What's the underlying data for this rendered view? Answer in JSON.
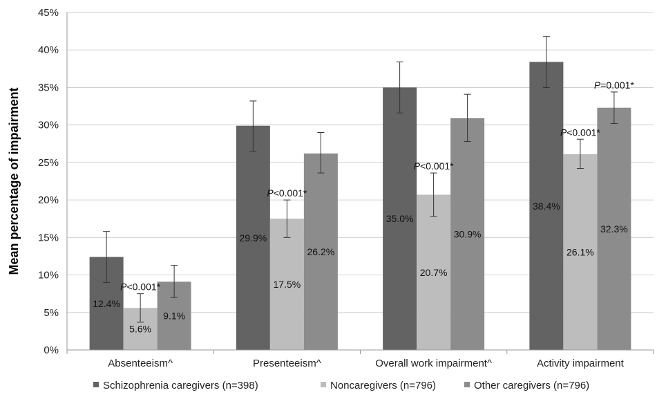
{
  "chart_data": {
    "type": "bar",
    "ylabel": "Mean percentage of impairment",
    "xlabel": "",
    "ylim": [
      0,
      45
    ],
    "y_ticks": [
      "0%",
      "5%",
      "10%",
      "15%",
      "20%",
      "25%",
      "30%",
      "35%",
      "40%",
      "45%"
    ],
    "y_tick_values": [
      0,
      5,
      10,
      15,
      20,
      25,
      30,
      35,
      40,
      45
    ],
    "grid": true,
    "legend_position": "bottom",
    "categories": [
      "Absenteeism^",
      "Presenteeism^",
      "Overall work impairment^",
      "Activity impairment"
    ],
    "series": [
      {
        "name": "Schizophrenia caregivers (n=398)",
        "color": "#636363",
        "values": [
          12.4,
          29.9,
          35.0,
          38.4
        ],
        "labels": [
          "12.4%",
          "29.9%",
          "35.0%",
          "38.4%"
        ],
        "error_low": [
          9.0,
          26.5,
          31.6,
          35.0
        ],
        "error_high": [
          15.8,
          33.2,
          38.4,
          41.8
        ]
      },
      {
        "name": "Noncaregivers (n=796)",
        "color": "#bdbdbd",
        "values": [
          5.6,
          17.5,
          20.7,
          26.1
        ],
        "labels": [
          "5.6%",
          "17.5%",
          "20.7%",
          "26.1%"
        ],
        "error_low": [
          3.7,
          15.0,
          17.8,
          24.2
        ],
        "error_high": [
          7.5,
          20.0,
          23.6,
          28.1
        ]
      },
      {
        "name": "Other caregivers (n=796)",
        "color": "#8c8c8c",
        "values": [
          9.1,
          26.2,
          30.9,
          32.3
        ],
        "labels": [
          "9.1%",
          "26.2%",
          "30.9%",
          "32.3%"
        ],
        "error_low": [
          7.0,
          23.6,
          27.8,
          30.2
        ],
        "error_high": [
          11.3,
          29.0,
          34.1,
          34.4
        ]
      }
    ],
    "annotations": [
      {
        "category": 0,
        "series": 1,
        "p": "P",
        "rest": "<0.001*"
      },
      {
        "category": 1,
        "series": 1,
        "p": "P",
        "rest": "<0.001*"
      },
      {
        "category": 2,
        "series": 1,
        "p": "P",
        "rest": "<0.001*"
      },
      {
        "category": 3,
        "series": 1,
        "p": "P",
        "rest": "<0.001*"
      },
      {
        "category": 3,
        "series": 2,
        "p": "P",
        "rest": "=0.001*"
      }
    ]
  }
}
